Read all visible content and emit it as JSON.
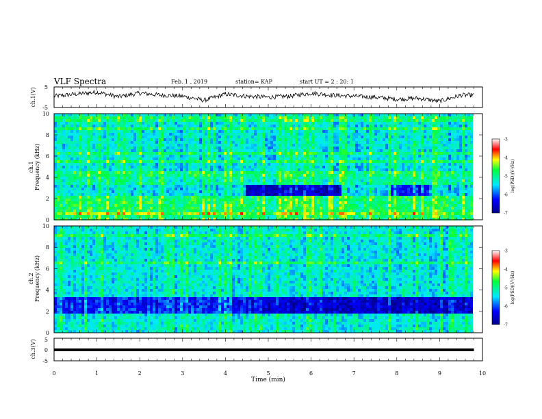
{
  "header": {
    "title": "VLF Spectra",
    "date": "Feb. 1 , 2019",
    "station": "station= KAP",
    "start": "start  UT =  2 : 20: 1"
  },
  "chart_data": [
    {
      "type": "line",
      "panel": "ch1-waveform",
      "ylabel": "ch.1(V)",
      "ylim": [
        -5,
        5
      ],
      "yticks": [
        "5",
        "-5"
      ],
      "xlim": [
        0,
        10
      ],
      "series": [
        {
          "x": [
            0,
            0.5,
            1,
            1.5,
            2,
            2.5,
            3,
            3.5,
            4,
            4.5,
            5,
            5.5,
            6,
            6.5,
            7,
            7.5,
            8,
            8.5,
            9,
            9.5,
            9.8
          ],
          "values": [
            0.5,
            1.5,
            2.5,
            0.2,
            2.0,
            1.0,
            0.5,
            -1.5,
            1.5,
            0.5,
            0.0,
            0.5,
            2.0,
            1.0,
            0.5,
            0.0,
            -1.0,
            -0.5,
            -2.0,
            1.0,
            1.0
          ]
        }
      ]
    },
    {
      "type": "heatmap",
      "panel": "ch1-spectrogram",
      "ylabel": "ch.1 Frequency (kHz)",
      "ylim": [
        0,
        10
      ],
      "yticks": [
        "0",
        "2",
        "4",
        "6",
        "8",
        "10"
      ],
      "xlim": [
        0,
        10
      ],
      "data_xmax": 9.8,
      "colorbar": {
        "label": "log(PSD)(V²/Hz)",
        "ticks": [
          "-3",
          "-4",
          "-5",
          "-6",
          "-7"
        ],
        "range": [
          -7,
          -3
        ]
      }
    },
    {
      "type": "heatmap",
      "panel": "ch2-spectrogram",
      "ylabel": "ch.2 Frequency (kHz)",
      "ylim": [
        0,
        10
      ],
      "yticks": [
        "0",
        "2",
        "4",
        "6",
        "8",
        "10"
      ],
      "xlim": [
        0,
        10
      ],
      "data_xmax": 9.8,
      "colorbar": {
        "label": "log(PSD)(V²/Hz)",
        "ticks": [
          "-3",
          "-4",
          "-5",
          "-6",
          "-7"
        ],
        "range": [
          -7,
          -3
        ]
      }
    },
    {
      "type": "line",
      "panel": "ch3-waveform",
      "ylabel": "ch.3(V)",
      "ylim": [
        -5,
        5
      ],
      "yticks": [
        "5",
        "0",
        "-5"
      ],
      "xlim": [
        0,
        10
      ],
      "series": [
        {
          "x": [
            0,
            9.8
          ],
          "values": [
            0,
            0
          ]
        }
      ]
    }
  ],
  "xaxis": {
    "label": "Time  (min)",
    "ticks": [
      "0",
      "1",
      "2",
      "3",
      "4",
      "5",
      "6",
      "7",
      "8",
      "9",
      "10"
    ]
  }
}
